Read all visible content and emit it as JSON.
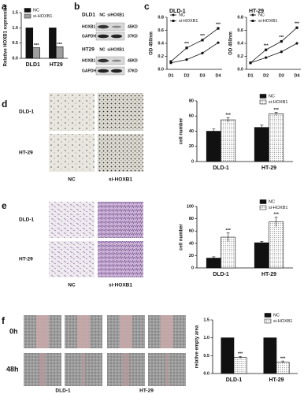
{
  "panel_letters": [
    "a",
    "b",
    "c",
    "d",
    "e",
    "f"
  ],
  "blot": [
    {
      "name": "DLD1",
      "lanes": [
        "NC",
        "siHOXB1"
      ],
      "bands": [
        {
          "name": "HOXB1",
          "size": "45KD"
        },
        {
          "name": "GAPDH",
          "size": "37KD"
        }
      ]
    },
    {
      "name": "HT29",
      "lanes": [
        "NC",
        "siHOXB1"
      ],
      "bands": [
        {
          "name": "HOXB1",
          "size": "45KD"
        },
        {
          "name": "GAPDH",
          "size": "37KD"
        }
      ]
    }
  ],
  "images": [
    {
      "rows": [
        "DLD-1",
        "HT-29"
      ],
      "cols": [
        "NC",
        "si-HOXB1"
      ]
    },
    {
      "rows": [
        "DLD-1",
        "HT-29"
      ],
      "cols": [
        "NC",
        "si-HOXB1"
      ]
    },
    {
      "rows": [
        "0h",
        "48h"
      ],
      "groups": [
        "DLD-1",
        "HT-29"
      ]
    }
  ],
  "chart_data": [
    {
      "type": "bar",
      "ylabel": "Relative HOXB1 expression",
      "categories": [
        "DLD1",
        "HT29"
      ],
      "series": [
        {
          "name": "NC",
          "color": "#111111",
          "values": [
            1.0,
            1.0
          ]
        },
        {
          "name": "si-HOXB1",
          "color": "#9e9e9e",
          "values": [
            0.35,
            0.38
          ],
          "annotations": [
            "***",
            "***"
          ]
        }
      ],
      "ylim": [
        0,
        1.5
      ],
      "yticks": [
        {
          "value": 0,
          "label": "0.0"
        },
        0.5,
        {
          "value": 1,
          "label": "1.0"
        },
        1.5
      ],
      "legend": "upper left"
    },
    {
      "type": "line",
      "title": "DLD-1",
      "ylabel": "OD 450nm",
      "categories": [
        "D1",
        "D2",
        "D3",
        "D4"
      ],
      "series": [
        {
          "name": "NC",
          "color": "#111111",
          "marker": "circle",
          "values": [
            0.1,
            0.15,
            0.25,
            0.41
          ]
        },
        {
          "name": "si-HOXB1",
          "color": "#111111",
          "marker": "square",
          "values": [
            0.12,
            0.33,
            0.45,
            0.63
          ],
          "annotations": [
            null,
            "***",
            "***",
            "***"
          ]
        }
      ],
      "ylim": [
        0,
        0.8
      ],
      "yticks": [
        {
          "value": 0,
          "label": "0.0"
        },
        0.2,
        0.4,
        0.6,
        0.8
      ],
      "legend": "upper left"
    },
    {
      "type": "line",
      "title": "HT-29",
      "ylabel": "OD 450nm",
      "categories": [
        "D1",
        "D2",
        "D3",
        "D4"
      ],
      "series": [
        {
          "name": "NC",
          "color": "#111111",
          "marker": "circle",
          "values": [
            0.1,
            0.18,
            0.27,
            0.4
          ]
        },
        {
          "name": "si-HOXB1",
          "color": "#111111",
          "marker": "square",
          "values": [
            0.1,
            0.3,
            0.43,
            0.64
          ],
          "annotations": [
            null,
            "***",
            "***",
            "***"
          ]
        }
      ],
      "ylim": [
        0,
        0.8
      ],
      "yticks": [
        {
          "value": 0,
          "label": "0.0"
        },
        0.2,
        0.4,
        0.6,
        0.8
      ],
      "legend": "upper left"
    },
    {
      "type": "bar",
      "ylabel": "cell number",
      "categories": [
        "DLD-1",
        "HT-29"
      ],
      "series": [
        {
          "name": "NC",
          "color": "#111111",
          "values": [
            40,
            45
          ],
          "errors": [
            3,
            3
          ]
        },
        {
          "name": "si-HOXB1",
          "color": "#ffffff",
          "hatch": "dots",
          "values": [
            55,
            63
          ],
          "errors": [
            3,
            2
          ],
          "annotations": [
            "***",
            "***"
          ]
        }
      ],
      "ylim": [
        0,
        80
      ],
      "yticks": [
        0,
        20,
        40,
        60,
        80
      ],
      "legend": "upper right"
    },
    {
      "type": "bar",
      "ylabel": "cell number",
      "categories": [
        "DLD-1",
        "HT-29"
      ],
      "series": [
        {
          "name": "NC",
          "color": "#111111",
          "values": [
            16,
            41
          ],
          "errors": [
            2,
            2
          ]
        },
        {
          "name": "si-HOXB1",
          "color": "#ffffff",
          "hatch": "dots",
          "values": [
            50,
            75
          ],
          "errors": [
            7,
            8
          ],
          "annotations": [
            "***",
            "***"
          ]
        }
      ],
      "ylim": [
        0,
        100
      ],
      "yticks": [
        0,
        20,
        40,
        60,
        80,
        100
      ],
      "legend": "upper right"
    },
    {
      "type": "bar",
      "ylabel": "relative empty area",
      "categories": [
        "DLD-1",
        "HT-29"
      ],
      "series": [
        {
          "name": "NC",
          "color": "#111111",
          "values": [
            1.0,
            1.0
          ]
        },
        {
          "name": "si-HOXB1",
          "color": "#ffffff",
          "hatch": "dots",
          "values": [
            0.45,
            0.32
          ],
          "errors": [
            0.03,
            0.03
          ],
          "annotations": [
            "***",
            "***"
          ]
        }
      ],
      "ylim": [
        0,
        1.5
      ],
      "yticks": [
        {
          "value": 0,
          "label": "0.0"
        },
        0.5,
        {
          "value": 1,
          "label": "1.0"
        },
        1.5
      ],
      "legend": "upper right"
    }
  ]
}
